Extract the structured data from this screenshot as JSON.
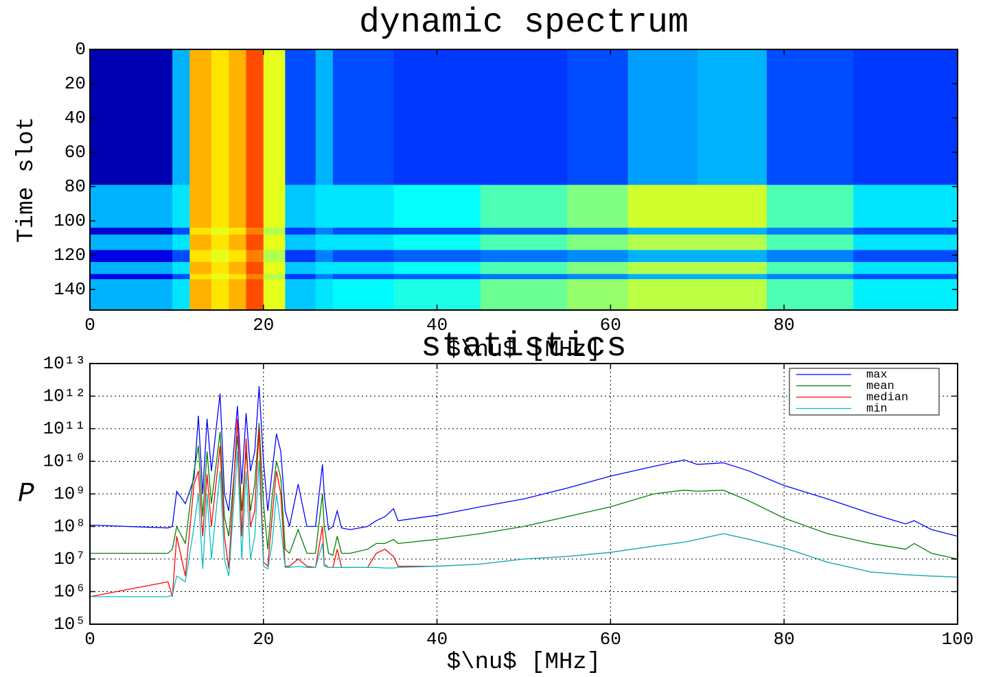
{
  "chart_data": [
    {
      "type": "heatmap",
      "title": "dynamic spectrum",
      "x_label": "$\\nu$ [MHz]",
      "y_label": "Time slot",
      "colormap": "jet",
      "xlim": [
        0,
        100
      ],
      "xticks": [
        0,
        20,
        40,
        60,
        80
      ],
      "ylim": [
        152,
        0
      ],
      "yticks": [
        0,
        20,
        40,
        60,
        80,
        100,
        120,
        140
      ],
      "x_edges": [
        0,
        9.5,
        11.5,
        14,
        16,
        18,
        20,
        22.5,
        26,
        28,
        35,
        45,
        55,
        62,
        70,
        78,
        88,
        100
      ],
      "y_edges": [
        0,
        79,
        104,
        108,
        117,
        124,
        131,
        134,
        152
      ],
      "z": [
        [
          0.05,
          0.3,
          0.7,
          0.65,
          0.7,
          0.8,
          0.6,
          0.2,
          0.3,
          0.2,
          0.18,
          0.18,
          0.2,
          0.28,
          0.3,
          0.2,
          0.18
        ],
        [
          0.3,
          0.35,
          0.7,
          0.65,
          0.7,
          0.8,
          0.6,
          0.32,
          0.35,
          0.35,
          0.38,
          0.45,
          0.5,
          0.58,
          0.58,
          0.45,
          0.35
        ],
        [
          0.08,
          0.2,
          0.65,
          0.6,
          0.65,
          0.75,
          0.55,
          0.18,
          0.25,
          0.2,
          0.2,
          0.22,
          0.25,
          0.3,
          0.3,
          0.25,
          0.2
        ],
        [
          0.3,
          0.35,
          0.7,
          0.65,
          0.7,
          0.8,
          0.6,
          0.32,
          0.35,
          0.35,
          0.38,
          0.45,
          0.5,
          0.55,
          0.55,
          0.45,
          0.35
        ],
        [
          0.1,
          0.2,
          0.65,
          0.6,
          0.65,
          0.75,
          0.55,
          0.18,
          0.25,
          0.2,
          0.22,
          0.24,
          0.26,
          0.3,
          0.3,
          0.25,
          0.2
        ],
        [
          0.3,
          0.35,
          0.7,
          0.65,
          0.7,
          0.8,
          0.6,
          0.32,
          0.35,
          0.35,
          0.38,
          0.45,
          0.5,
          0.55,
          0.55,
          0.45,
          0.35
        ],
        [
          0.1,
          0.2,
          0.65,
          0.6,
          0.65,
          0.75,
          0.55,
          0.18,
          0.25,
          0.2,
          0.22,
          0.24,
          0.26,
          0.3,
          0.3,
          0.25,
          0.2
        ],
        [
          0.3,
          0.35,
          0.7,
          0.65,
          0.7,
          0.8,
          0.6,
          0.32,
          0.35,
          0.37,
          0.4,
          0.48,
          0.52,
          0.56,
          0.56,
          0.45,
          0.36
        ]
      ]
    },
    {
      "type": "line",
      "title": "statistics",
      "x_label": "$\\nu$ [MHz]",
      "y_label": "P",
      "yscale": "log",
      "grid": true,
      "legend": "upper right",
      "xlim": [
        0,
        100
      ],
      "xticks": [
        0,
        20,
        40,
        60,
        80,
        100
      ],
      "ylim": [
        100000,
        10000000000000
      ],
      "yticks": [
        {
          "value": 100000,
          "label": "10⁵"
        },
        {
          "value": 1000000,
          "label": "10⁶"
        },
        {
          "value": 10000000,
          "label": "10⁷"
        },
        {
          "value": 100000000,
          "label": "10⁸"
        },
        {
          "value": 1000000000,
          "label": "10⁹"
        },
        {
          "value": 10000000000,
          "label": "10¹⁰"
        },
        {
          "value": 100000000000,
          "label": "10¹¹"
        },
        {
          "value": 1000000000000,
          "label": "10¹²"
        },
        {
          "value": 10000000000000,
          "label": "10¹³"
        }
      ],
      "x": [
        0,
        9,
        9.5,
        10,
        11,
        12,
        12.5,
        13,
        13.5,
        14,
        15,
        15.5,
        16,
        17,
        17.5,
        18,
        18.5,
        19,
        19.5,
        20,
        20.5,
        21,
        21.5,
        22,
        22.5,
        23,
        24,
        25,
        26,
        26.8,
        27,
        27.5,
        28,
        28.5,
        29,
        30,
        32,
        33,
        34,
        35,
        35.5,
        40,
        45,
        50,
        55,
        60,
        65,
        68.5,
        70,
        73,
        76,
        80,
        85,
        90,
        94,
        95,
        97,
        100
      ],
      "series": [
        {
          "name": "max",
          "color": "#0000ff",
          "values": [
            110000000.0,
            90000000.0,
            100000000.0,
            1200000000.0,
            500000000.0,
            3000000000.0,
            250000000000.0,
            1000000000.0,
            200000000000.0,
            5000000000.0,
            1200000000000.0,
            1000000000.0,
            300000000.0,
            500000000000.0,
            2000000000.0,
            300000000000.0,
            5000000000.0,
            20000000000.0,
            2000000000000.0,
            10000000000.0,
            300000000.0,
            5000000000.0,
            70000000000.0,
            20000000000.0,
            300000000.0,
            100000000.0,
            2000000000.0,
            100000000.0,
            100000000.0,
            8000000000.0,
            1000000000.0,
            80000000.0,
            100000000.0,
            300000000.0,
            90000000.0,
            80000000.0,
            100000000.0,
            150000000.0,
            200000000.0,
            350000000.0,
            150000000.0,
            220000000.0,
            400000000.0,
            700000000.0,
            1500000000.0,
            3500000000.0,
            7000000000.0,
            11000000000.0,
            8000000000.0,
            9000000000.0,
            5000000000.0,
            1800000000.0,
            700000000.0,
            250000000.0,
            120000000.0,
            150000000.0,
            80000000.0,
            50000000.0
          ]
        },
        {
          "name": "mean",
          "color": "#008000",
          "values": [
            15000000.0,
            15000000.0,
            20000000.0,
            100000000.0,
            30000000.0,
            5000000000.0,
            30000000000.0,
            200000000.0,
            20000000000.0,
            500000000.0,
            80000000000.0,
            200000000.0,
            50000000.0,
            60000000000.0,
            300000000.0,
            20000000000.0,
            300000000.0,
            2000000000.0,
            150000000000.0,
            500000000.0,
            20000000.0,
            800000000.0,
            10000000000.0,
            3000000000.0,
            20000000.0,
            15000000.0,
            80000000.0,
            15000000.0,
            15000000.0,
            1000000000.0,
            100000000.0,
            15000000.0,
            13000000.0,
            50000000.0,
            15000000.0,
            15000000.0,
            20000000.0,
            30000000.0,
            30000000.0,
            40000000.0,
            30000000.0,
            40000000.0,
            60000000.0,
            100000000.0,
            200000000.0,
            400000000.0,
            1000000000.0,
            1300000000.0,
            1200000000.0,
            1300000000.0,
            600000000.0,
            180000000.0,
            60000000.0,
            30000000.0,
            20000000.0,
            30000000.0,
            15000000.0,
            10000000.0
          ]
        },
        {
          "name": "median",
          "color": "#ff0000",
          "values": [
            700000.0,
            2000000.0,
            700000.0,
            50000000.0,
            3000000.0,
            2000000000.0,
            5000000000.0,
            50000000.0,
            4000000000.0,
            100000000.0,
            30000000000.0,
            50000000.0,
            5000000.0,
            200000000000.0,
            50000000.0,
            50000000000.0,
            100000000.0,
            300000000.0,
            100000000000.0,
            8000000.0,
            6000000.0,
            200000000.0,
            5000000000.0,
            1000000000.0,
            6000000.0,
            6000000.0,
            10000000.0,
            6000000.0,
            5500000.0,
            100000000.0,
            7000000.0,
            5500000.0,
            5500000.0,
            20000000.0,
            5500000.0,
            5500000.0,
            5500000.0,
            15000000.0,
            20000000.0,
            12000000.0,
            6000000.0,
            6000000.0,
            7000000.0,
            10000000.0,
            12000000.0,
            16000000.0,
            25000000.0,
            33000000.0,
            40000000.0,
            60000000.0,
            40000000.0,
            22000000.0,
            8000000.0,
            4000000.0,
            3300000.0,
            3200000.0,
            3000000.0,
            2800000.0
          ]
        },
        {
          "name": "min",
          "color": "#00bfbf",
          "values": [
            700000.0,
            700000.0,
            800000.0,
            3000000.0,
            2000000.0,
            100000000.0,
            1000000000.0,
            5000000.0,
            1000000000.0,
            10000000.0,
            5000000000.0,
            10000000.0,
            3000000.0,
            20000000000.0,
            10000000.0,
            5000000000.0,
            10000000.0,
            50000000.0,
            10000000000.0,
            6000000.0,
            5000000.0,
            30000000.0,
            1000000000.0,
            100000000.0,
            5500000.0,
            5500000.0,
            6000000.0,
            5500000.0,
            5500000.0,
            30000000.0,
            6000000.0,
            5500000.0,
            5500000.0,
            5500000.0,
            5500000.0,
            5500000.0,
            5500000.0,
            5500000.0,
            5300000.0,
            5300000.0,
            5500000.0,
            6000000.0,
            7000000.0,
            10000000.0,
            12000000.0,
            16000000.0,
            25000000.0,
            33000000.0,
            40000000.0,
            60000000.0,
            40000000.0,
            22000000.0,
            8000000.0,
            4000000.0,
            3300000.0,
            3200000.0,
            3000000.0,
            2800000.0
          ]
        }
      ]
    }
  ]
}
